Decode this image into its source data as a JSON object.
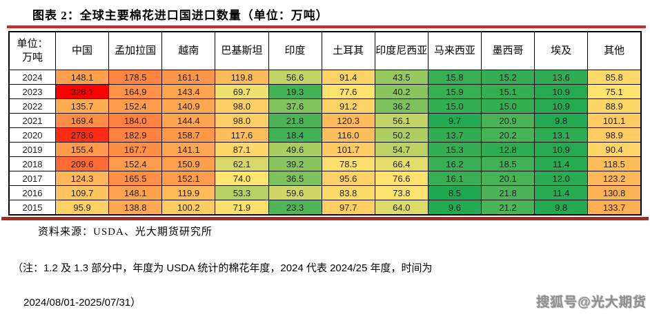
{
  "title": "图表 2：全球主要棉花进口国进口数量（单位：万吨）",
  "chart_data": {
    "type": "table",
    "title": "全球主要棉花进口国进口数量",
    "unit_label": "单位：\n万吨",
    "columns": [
      "中国",
      "孟加拉国",
      "越南",
      "巴基斯坦",
      "印度",
      "土耳其",
      "印度尼西亚",
      "马来西亚",
      "墨西哥",
      "埃及",
      "其他"
    ],
    "years": [
      "2024",
      "2023",
      "2022",
      "2021",
      "2020",
      "2019",
      "2018",
      "2017",
      "2016",
      "2015"
    ],
    "rows": [
      [
        148.1,
        178.5,
        161.1,
        119.8,
        56.6,
        91.4,
        43.5,
        15.8,
        15.2,
        13.6,
        85.8
      ],
      [
        326.1,
        164.9,
        143.4,
        69.7,
        19.3,
        77.6,
        40.2,
        15.9,
        15.1,
        10.9,
        75.1
      ],
      [
        135.7,
        152.4,
        140.9,
        98.0,
        37.6,
        91.2,
        36.2,
        15.0,
        15.0,
        10.9,
        88.9
      ],
      [
        169.4,
        184.0,
        144.4,
        98.0,
        21.8,
        120.3,
        56.1,
        9.7,
        20.9,
        9.8,
        101.1
      ],
      [
        278.6,
        182.9,
        158.7,
        117.6,
        18.4,
        116.0,
        50.2,
        13.7,
        20.2,
        13.1,
        98.9
      ],
      [
        155.4,
        167.7,
        141.1,
        87.1,
        49.6,
        101.7,
        54.7,
        15.3,
        12.8,
        10.9,
        90.4
      ],
      [
        209.6,
        152.4,
        150.9,
        62.1,
        39.2,
        78.5,
        66.4,
        16.2,
        18.5,
        11.4,
        118.5
      ],
      [
        124.3,
        165.5,
        152.1,
        74.0,
        36.5,
        95.6,
        76.6,
        16.1,
        20.1,
        12.0,
        123.2
      ],
      [
        109.7,
        148.1,
        119.9,
        53.3,
        59.6,
        83.8,
        73.8,
        8.5,
        21.8,
        11.4,
        130.8
      ],
      [
        95.9,
        138.8,
        100.2,
        71.9,
        23.3,
        97.7,
        64.0,
        9.6,
        21.2,
        9.8,
        133.7
      ]
    ],
    "heatmap": {
      "min": 8.5,
      "mid": 74,
      "max": 326.1,
      "green_rgb": [
        30,
        168,
        80
      ],
      "yellow_rgb": [
        255,
        228,
        110
      ],
      "red_rgb": [
        255,
        0,
        0
      ]
    }
  },
  "colors": {
    "title_rule": "#d6282a",
    "bottom_rule": "#a5291f",
    "border": "#000000"
  },
  "footer": {
    "source": "资料来源：USDA、光大期货研究所",
    "note_line1": "（注：1.2 及 1.3 部分中，年度为 USDA 统计的棉花年度，2024 代表 2024/25 年度，时间为",
    "note_line2": "2024/08/01-2025/07/31）",
    "watermark": "搜狐号@光大期货"
  }
}
